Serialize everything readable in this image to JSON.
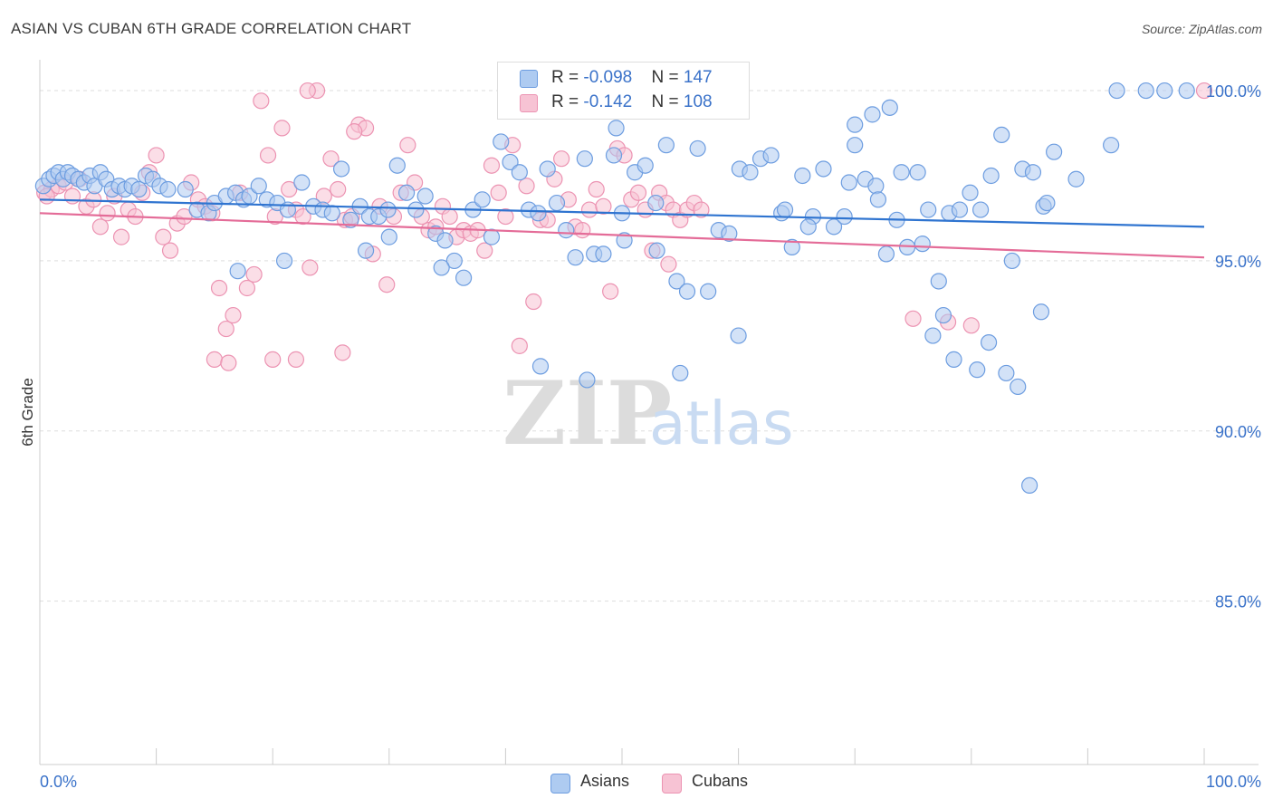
{
  "title": "ASIAN VS CUBAN 6TH GRADE CORRELATION CHART",
  "source": "Source: ZipAtlas.com",
  "watermark": {
    "zip": "ZIP",
    "atlas": "atlas"
  },
  "legend": {
    "rows": [
      {
        "r_label": "R = ",
        "r_value": "-0.098",
        "n_label": "N = ",
        "n_value": "147",
        "color": "#7aa9e6"
      },
      {
        "r_label": "R = ",
        "r_value": "-0.142",
        "n_label": "N = ",
        "n_value": "108",
        "color": "#f19bb7"
      }
    ]
  },
  "bottom_legend": {
    "asians": "Asians",
    "cubans": "Cubans"
  },
  "colors": {
    "asians_fill": "#aecbf1",
    "asians_stroke": "#6d9de0",
    "asians_line": "#2f74d0",
    "cubans_fill": "#f7c3d4",
    "cubans_stroke": "#ec93b2",
    "cubans_line": "#e46c98",
    "tick_label": "#3a72c9",
    "grid": "#dddddd"
  },
  "chart_data": {
    "type": "scatter",
    "title": "ASIAN VS CUBAN 6TH GRADE CORRELATION CHART",
    "xlabel": "",
    "ylabel": "6th Grade",
    "xlim": [
      0,
      100
    ],
    "ylim": [
      80.2,
      100.8
    ],
    "x_tick_labels": [
      "0.0%",
      "100.0%"
    ],
    "y_ticks": [
      85,
      90,
      95,
      100
    ],
    "y_tick_labels": [
      "85.0%",
      "90.0%",
      "95.0%",
      "100.0%"
    ],
    "grid": true,
    "legend_position": "top-center",
    "series": [
      {
        "name": "Asians",
        "r": -0.098,
        "n": 147,
        "trend": {
          "x": [
            0,
            100
          ],
          "y": [
            96.8,
            96.0
          ]
        },
        "points": [
          [
            0.3,
            97.2
          ],
          [
            0.8,
            97.4
          ],
          [
            1.2,
            97.5
          ],
          [
            1.6,
            97.6
          ],
          [
            2.0,
            97.4
          ],
          [
            2.4,
            97.6
          ],
          [
            2.8,
            97.5
          ],
          [
            3.3,
            97.4
          ],
          [
            3.8,
            97.3
          ],
          [
            4.3,
            97.5
          ],
          [
            4.7,
            97.2
          ],
          [
            5.2,
            97.6
          ],
          [
            5.7,
            97.4
          ],
          [
            6.2,
            97.1
          ],
          [
            6.8,
            97.2
          ],
          [
            7.3,
            97.1
          ],
          [
            7.9,
            97.2
          ],
          [
            8.5,
            97.1
          ],
          [
            9.1,
            97.5
          ],
          [
            9.7,
            97.4
          ],
          [
            10.3,
            97.2
          ],
          [
            11.0,
            97.1
          ],
          [
            12.5,
            97.1
          ],
          [
            13.5,
            96.5
          ],
          [
            14.5,
            96.4
          ],
          [
            15.0,
            96.7
          ],
          [
            16.0,
            96.9
          ],
          [
            16.8,
            97.0
          ],
          [
            17.5,
            96.8
          ],
          [
            18.0,
            96.9
          ],
          [
            18.8,
            97.2
          ],
          [
            19.5,
            96.8
          ],
          [
            20.4,
            96.7
          ],
          [
            21.3,
            96.5
          ],
          [
            22.5,
            97.3
          ],
          [
            23.5,
            96.6
          ],
          [
            24.3,
            96.5
          ],
          [
            25.1,
            96.4
          ],
          [
            25.9,
            97.7
          ],
          [
            26.7,
            96.2
          ],
          [
            27.5,
            96.6
          ],
          [
            28.3,
            96.3
          ],
          [
            29.1,
            96.3
          ],
          [
            29.9,
            96.5
          ],
          [
            30.7,
            97.8
          ],
          [
            31.5,
            97.0
          ],
          [
            32.3,
            96.5
          ],
          [
            33.1,
            96.9
          ],
          [
            34.0,
            95.8
          ],
          [
            34.8,
            95.6
          ],
          [
            35.6,
            95.0
          ],
          [
            36.4,
            94.5
          ],
          [
            37.2,
            96.5
          ],
          [
            38.0,
            96.8
          ],
          [
            38.8,
            95.7
          ],
          [
            39.6,
            98.5
          ],
          [
            40.4,
            97.9
          ],
          [
            41.2,
            97.6
          ],
          [
            42.0,
            96.5
          ],
          [
            42.8,
            96.4
          ],
          [
            43.6,
            97.7
          ],
          [
            44.4,
            96.7
          ],
          [
            45.2,
            95.9
          ],
          [
            46.0,
            95.1
          ],
          [
            46.8,
            98.0
          ],
          [
            47.6,
            95.2
          ],
          [
            48.4,
            95.2
          ],
          [
            49.3,
            98.1
          ],
          [
            50.2,
            95.6
          ],
          [
            51.1,
            97.6
          ],
          [
            52.0,
            97.8
          ],
          [
            52.9,
            96.7
          ],
          [
            53.8,
            98.4
          ],
          [
            54.7,
            94.4
          ],
          [
            55.6,
            94.1
          ],
          [
            56.5,
            98.3
          ],
          [
            57.4,
            94.1
          ],
          [
            58.3,
            95.9
          ],
          [
            59.2,
            95.8
          ],
          [
            60.1,
            97.7
          ],
          [
            61.0,
            97.6
          ],
          [
            61.9,
            98.0
          ],
          [
            62.8,
            98.1
          ],
          [
            63.7,
            96.4
          ],
          [
            64.6,
            95.4
          ],
          [
            65.5,
            97.5
          ],
          [
            66.4,
            96.3
          ],
          [
            67.3,
            97.7
          ],
          [
            68.2,
            96.0
          ],
          [
            69.1,
            96.3
          ],
          [
            70.0,
            98.4
          ],
          [
            70.9,
            97.4
          ],
          [
            71.8,
            97.2
          ],
          [
            72.7,
            95.2
          ],
          [
            73.6,
            96.2
          ],
          [
            74.5,
            95.4
          ],
          [
            75.4,
            97.6
          ],
          [
            76.3,
            96.5
          ],
          [
            77.2,
            94.4
          ],
          [
            78.1,
            96.4
          ],
          [
            79.0,
            96.5
          ],
          [
            79.9,
            97.0
          ],
          [
            80.8,
            96.5
          ],
          [
            81.7,
            97.5
          ],
          [
            82.6,
            98.7
          ],
          [
            83.5,
            95.0
          ],
          [
            84.4,
            97.7
          ],
          [
            85.3,
            97.6
          ],
          [
            86.2,
            96.6
          ],
          [
            87.1,
            98.2
          ],
          [
            89.0,
            97.4
          ],
          [
            92.0,
            98.4
          ],
          [
            75.8,
            95.5
          ],
          [
            76.7,
            92.8
          ],
          [
            77.6,
            93.4
          ],
          [
            78.5,
            92.1
          ],
          [
            80.5,
            91.8
          ],
          [
            81.5,
            92.6
          ],
          [
            83.0,
            91.7
          ],
          [
            84.0,
            91.3
          ],
          [
            85.0,
            88.4
          ],
          [
            92.5,
            100.0
          ],
          [
            95.0,
            100.0
          ],
          [
            96.6,
            100.0
          ],
          [
            98.5,
            100.0
          ],
          [
            86.0,
            93.5
          ],
          [
            60.0,
            92.8
          ],
          [
            70.0,
            99.0
          ],
          [
            71.5,
            99.3
          ],
          [
            73.0,
            99.5
          ],
          [
            74.0,
            97.6
          ],
          [
            49.5,
            98.9
          ],
          [
            50.0,
            96.4
          ],
          [
            17.0,
            94.7
          ],
          [
            21.0,
            95.0
          ],
          [
            28.0,
            95.3
          ],
          [
            30.0,
            95.7
          ],
          [
            34.5,
            94.8
          ],
          [
            43.0,
            91.9
          ],
          [
            47.0,
            91.5
          ],
          [
            55.0,
            91.7
          ],
          [
            53.0,
            95.3
          ],
          [
            64.0,
            96.5
          ],
          [
            66.0,
            96.0
          ],
          [
            69.5,
            97.3
          ],
          [
            72.0,
            96.8
          ],
          [
            86.5,
            96.7
          ]
        ]
      },
      {
        "name": "Cubans",
        "r": -0.142,
        "n": 108,
        "trend": {
          "x": [
            0,
            100
          ],
          "y": [
            96.4,
            95.1
          ]
        },
        "points": [
          [
            0.4,
            97.0
          ],
          [
            1.0,
            97.1
          ],
          [
            1.6,
            97.2
          ],
          [
            2.2,
            97.3
          ],
          [
            2.8,
            96.9
          ],
          [
            3.4,
            97.4
          ],
          [
            4.0,
            96.6
          ],
          [
            4.6,
            96.8
          ],
          [
            5.2,
            96.0
          ],
          [
            5.8,
            96.4
          ],
          [
            6.4,
            96.9
          ],
          [
            7.0,
            95.7
          ],
          [
            7.6,
            96.5
          ],
          [
            8.2,
            96.3
          ],
          [
            8.8,
            97.0
          ],
          [
            9.4,
            97.6
          ],
          [
            10.0,
            98.1
          ],
          [
            10.6,
            95.7
          ],
          [
            11.2,
            95.3
          ],
          [
            11.8,
            96.1
          ],
          [
            12.4,
            96.3
          ],
          [
            13.0,
            97.3
          ],
          [
            13.6,
            96.8
          ],
          [
            14.2,
            96.6
          ],
          [
            14.8,
            96.4
          ],
          [
            15.4,
            94.2
          ],
          [
            16.0,
            93.0
          ],
          [
            16.6,
            93.4
          ],
          [
            17.2,
            97.0
          ],
          [
            17.8,
            94.2
          ],
          [
            18.4,
            94.6
          ],
          [
            19.0,
            99.7
          ],
          [
            19.6,
            98.1
          ],
          [
            20.2,
            96.3
          ],
          [
            20.8,
            98.9
          ],
          [
            21.4,
            97.1
          ],
          [
            22.0,
            96.5
          ],
          [
            22.6,
            96.3
          ],
          [
            23.2,
            94.8
          ],
          [
            23.8,
            100.0
          ],
          [
            24.4,
            96.9
          ],
          [
            25.0,
            98.0
          ],
          [
            25.6,
            97.1
          ],
          [
            26.2,
            96.2
          ],
          [
            26.8,
            96.3
          ],
          [
            27.4,
            99.0
          ],
          [
            28.0,
            98.9
          ],
          [
            28.6,
            95.2
          ],
          [
            29.2,
            96.6
          ],
          [
            29.8,
            94.3
          ],
          [
            30.4,
            96.3
          ],
          [
            31.0,
            97.0
          ],
          [
            31.6,
            98.4
          ],
          [
            32.2,
            97.3
          ],
          [
            32.8,
            96.3
          ],
          [
            33.4,
            95.9
          ],
          [
            34.0,
            96.0
          ],
          [
            34.6,
            96.6
          ],
          [
            35.2,
            96.3
          ],
          [
            35.8,
            95.7
          ],
          [
            36.4,
            95.9
          ],
          [
            37.0,
            95.8
          ],
          [
            37.6,
            95.9
          ],
          [
            38.2,
            95.3
          ],
          [
            38.8,
            97.8
          ],
          [
            39.4,
            97.0
          ],
          [
            40.0,
            96.3
          ],
          [
            40.6,
            98.4
          ],
          [
            41.2,
            92.5
          ],
          [
            41.8,
            97.2
          ],
          [
            42.4,
            93.8
          ],
          [
            43.0,
            96.2
          ],
          [
            43.6,
            96.2
          ],
          [
            44.2,
            97.4
          ],
          [
            44.8,
            98.0
          ],
          [
            45.4,
            96.8
          ],
          [
            46.0,
            96.0
          ],
          [
            46.6,
            95.9
          ],
          [
            47.2,
            96.5
          ],
          [
            47.8,
            97.1
          ],
          [
            48.4,
            96.6
          ],
          [
            49.0,
            94.1
          ],
          [
            49.6,
            98.3
          ],
          [
            50.2,
            98.1
          ],
          [
            50.8,
            96.8
          ],
          [
            51.4,
            97.0
          ],
          [
            52.0,
            96.5
          ],
          [
            52.6,
            95.3
          ],
          [
            53.2,
            97.0
          ],
          [
            53.8,
            96.7
          ],
          [
            54.4,
            96.5
          ],
          [
            55.0,
            96.2
          ],
          [
            55.6,
            96.5
          ],
          [
            56.2,
            96.7
          ],
          [
            56.8,
            96.5
          ],
          [
            0.6,
            96.9
          ],
          [
            23.0,
            100.0
          ],
          [
            27.0,
            98.8
          ],
          [
            54.0,
            94.9
          ],
          [
            75.0,
            93.3
          ],
          [
            78.0,
            93.2
          ],
          [
            80.0,
            93.1
          ],
          [
            100.0,
            100.0
          ],
          [
            15.0,
            92.1
          ],
          [
            16.2,
            92.0
          ],
          [
            20.0,
            92.1
          ],
          [
            22.0,
            92.1
          ],
          [
            26.0,
            92.3
          ]
        ]
      }
    ]
  }
}
